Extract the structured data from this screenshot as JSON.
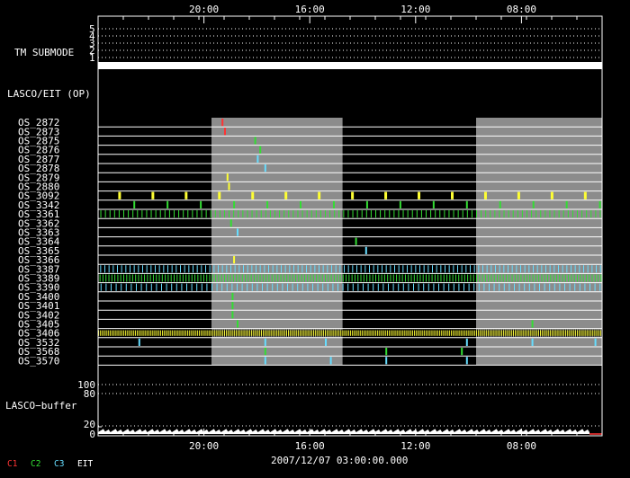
{
  "chart_data": {
    "type": "timeline",
    "time_axis": {
      "tick_labels_top": [
        "20:00",
        "16:00",
        "12:00",
        "08:00"
      ],
      "tick_labels_bottom": [
        "20:00",
        "16:00",
        "12:00",
        "08:00"
      ],
      "tick_positions": [
        0.21,
        0.42,
        0.63,
        0.84
      ],
      "center_label": "2007/12/07 03:00:00.000"
    },
    "tm_submode": {
      "label": "TM SUBMODE",
      "levels": [
        "5",
        "4",
        "3",
        "2",
        "1"
      ],
      "active_level": "1"
    },
    "section_title": "LASCO/EIT (OP)",
    "shaded_windows": [
      [
        0.225,
        0.485
      ],
      [
        0.75,
        1.0
      ]
    ],
    "rows": [
      {
        "name": "OS_2872",
        "color": "#ff3333",
        "events": [
          0.245
        ]
      },
      {
        "name": "OS_2873",
        "color": "#ff3333",
        "events": [
          0.25
        ]
      },
      {
        "name": "OS_2875",
        "color": "#33dd33",
        "events": [
          0.31
        ]
      },
      {
        "name": "OS_2876",
        "color": "#33dd33",
        "events": [
          0.32
        ]
      },
      {
        "name": "OS_2877",
        "color": "#66ddff",
        "events": [
          0.315
        ]
      },
      {
        "name": "OS_2878",
        "color": "#66ddff",
        "events": [
          0.33
        ]
      },
      {
        "name": "OS_2879",
        "color": "#ffff33",
        "events": [
          0.255
        ]
      },
      {
        "name": "OS_2880",
        "color": "#ffff33",
        "events": [
          0.258
        ]
      },
      {
        "name": "OS_3092",
        "color": "#ffff33",
        "dense": "periodic",
        "period": 0.066,
        "start": 0.04,
        "width": 3
      },
      {
        "name": "OS_3342",
        "color": "#33dd33",
        "dense": "periodic",
        "period": 0.066,
        "start": 0.07,
        "width": 2
      },
      {
        "name": "OS_3361",
        "color": "#33dd33",
        "dense": "dense",
        "count": 110
      },
      {
        "name": "OS_3362",
        "color": "#33dd33",
        "events": [
          0.262
        ]
      },
      {
        "name": "OS_3363",
        "color": "#66ddff",
        "events": [
          0.275
        ]
      },
      {
        "name": "OS_3364",
        "color": "#33dd33",
        "events": [
          0.51
        ]
      },
      {
        "name": "OS_3365",
        "color": "#66ddff",
        "events": [
          0.53
        ]
      },
      {
        "name": "OS_3366",
        "color": "#ffff33",
        "events": [
          0.268
        ]
      },
      {
        "name": "OS_3387",
        "color": "#66ddff",
        "dense": "dense",
        "count": 120
      },
      {
        "name": "OS_3389",
        "color": "#33dd33",
        "dense": "dense",
        "count": 170
      },
      {
        "name": "OS_3390",
        "color": "#66ddff",
        "dense": "dense",
        "count": 100
      },
      {
        "name": "OS_3400",
        "color": "#33dd33",
        "events": [
          0.265
        ]
      },
      {
        "name": "OS_3401",
        "color": "#33dd33",
        "events": [
          0.265
        ]
      },
      {
        "name": "OS_3402",
        "color": "#33dd33",
        "events": [
          0.265
        ]
      },
      {
        "name": "OS_3405",
        "color": "#33dd33",
        "events": [
          0.275,
          0.86
        ]
      },
      {
        "name": "OS_3406",
        "color": "#ffff33",
        "dense": "dense",
        "count": 260,
        "bg": "#ffff33"
      },
      {
        "name": "OS_3532",
        "color": "#66ddff",
        "events": [
          0.08,
          0.33,
          0.45,
          0.73,
          0.86,
          0.985
        ]
      },
      {
        "name": "OS_3568",
        "color": "#33dd33",
        "events": [
          0.33,
          0.57,
          0.72
        ]
      },
      {
        "name": "OS_3570",
        "color": "#66ddff",
        "events": [
          0.33,
          0.46,
          0.57,
          0.73
        ]
      }
    ],
    "buffer": {
      "label": "LASCO−buffer",
      "ticks": [
        "100",
        "80",
        "20",
        "0"
      ]
    },
    "legend": [
      {
        "label": "C1",
        "color": "#ff3333"
      },
      {
        "label": "C2",
        "color": "#33dd33"
      },
      {
        "label": "C3",
        "color": "#66ddff"
      },
      {
        "label": "EIT",
        "color": "#ffffff"
      }
    ]
  }
}
